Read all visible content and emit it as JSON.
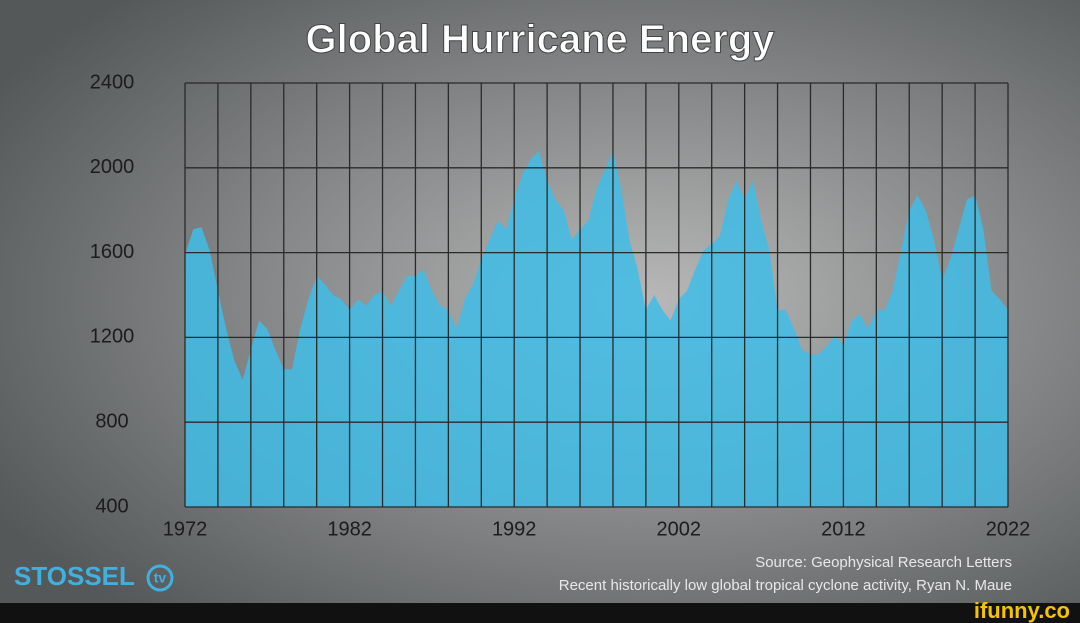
{
  "chart_data": {
    "type": "area",
    "title": "Global Hurricane Energy",
    "x": [
      1972,
      1972.5,
      1973,
      1973.5,
      1974,
      1974.5,
      1975,
      1975.5,
      1976,
      1976.5,
      1977,
      1977.5,
      1978,
      1978.5,
      1979,
      1979.5,
      1980,
      1980.5,
      1981,
      1981.5,
      1982,
      1982.5,
      1983,
      1983.5,
      1984,
      1984.5,
      1985,
      1985.5,
      1986,
      1986.5,
      1987,
      1987.5,
      1988,
      1988.5,
      1989,
      1989.5,
      1990,
      1990.5,
      1991,
      1991.5,
      1992,
      1992.5,
      1993,
      1993.5,
      1994,
      1994.5,
      1995,
      1995.5,
      1996,
      1996.5,
      1997,
      1997.5,
      1998,
      1998.5,
      1999,
      1999.5,
      2000,
      2000.5,
      2001,
      2001.5,
      2002,
      2002.5,
      2003,
      2003.5,
      2004,
      2004.5,
      2005,
      2005.5,
      2006,
      2006.5,
      2007,
      2007.5,
      2008,
      2008.5,
      2009,
      2009.5,
      2010,
      2010.5,
      2011,
      2011.5,
      2012,
      2012.5,
      2013,
      2013.5,
      2014,
      2014.5,
      2015,
      2015.5,
      2016,
      2016.5,
      2017,
      2017.5,
      2018,
      2018.5,
      2019,
      2019.5,
      2020,
      2020.5,
      2021,
      2021.5,
      2022
    ],
    "values": [
      1590,
      1710,
      1720,
      1610,
      1420,
      1240,
      1090,
      1000,
      1140,
      1280,
      1240,
      1140,
      1050,
      1050,
      1240,
      1380,
      1490,
      1450,
      1400,
      1380,
      1330,
      1380,
      1350,
      1400,
      1420,
      1350,
      1420,
      1490,
      1490,
      1520,
      1420,
      1350,
      1330,
      1240,
      1380,
      1450,
      1570,
      1660,
      1750,
      1710,
      1850,
      1970,
      2040,
      2080,
      1940,
      1850,
      1800,
      1660,
      1710,
      1750,
      1900,
      1990,
      2080,
      1900,
      1660,
      1520,
      1330,
      1400,
      1330,
      1280,
      1380,
      1420,
      1520,
      1610,
      1640,
      1680,
      1850,
      1940,
      1850,
      1940,
      1750,
      1610,
      1330,
      1330,
      1240,
      1140,
      1120,
      1120,
      1160,
      1210,
      1160,
      1280,
      1310,
      1240,
      1330,
      1330,
      1420,
      1610,
      1800,
      1870,
      1800,
      1660,
      1470,
      1570,
      1710,
      1850,
      1870,
      1710,
      1420,
      1380,
      1330
    ],
    "color": "#3fbde6",
    "xlim": [
      1972,
      2022
    ],
    "xticks": [
      1972,
      1982,
      1992,
      2002,
      2012,
      2022
    ],
    "xgrid": [
      1972,
      1974,
      1976,
      1978,
      1980,
      1982,
      1984,
      1986,
      1988,
      1990,
      1992,
      1994,
      1996,
      1998,
      2000,
      2002,
      2004,
      2006,
      2008,
      2010,
      2012,
      2014,
      2016,
      2018,
      2020,
      2022
    ],
    "ylim": [
      400,
      2400
    ],
    "yticks": [
      400,
      800,
      1200,
      1600,
      2000,
      2400
    ],
    "grid": true,
    "source": "Source: Geophysical Research Letters",
    "source_detail": "Recent historically low global tropical cyclone activity, Ryan N. Maue"
  },
  "branding": {
    "logo": "STOSSEL",
    "logo_badge": "tv",
    "watermark": "ifunny.co"
  }
}
